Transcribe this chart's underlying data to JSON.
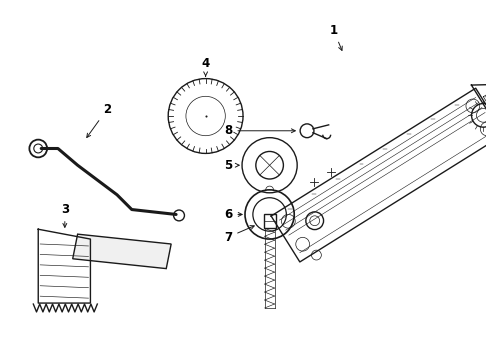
{
  "background_color": "#ffffff",
  "line_color": "#1a1a1a",
  "label_color": "#000000",
  "lw_main": 1.0,
  "lw_thin": 0.5
}
